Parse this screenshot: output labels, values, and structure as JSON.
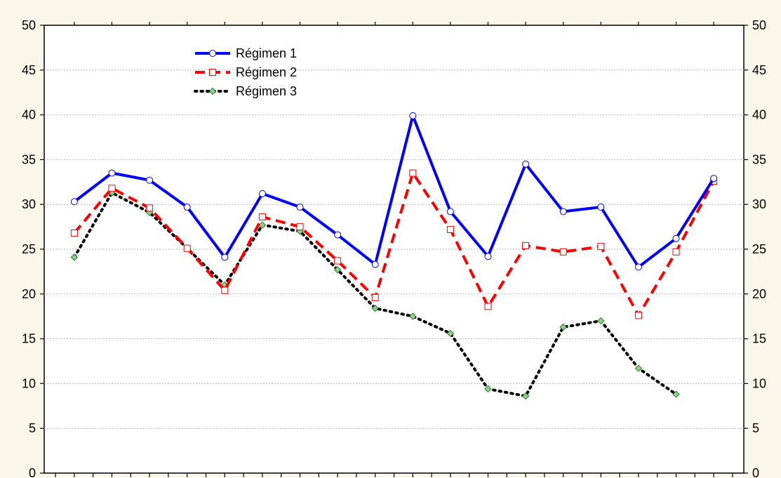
{
  "chart_data": {
    "type": "line",
    "title": "",
    "xlabel": "",
    "ylabel": "",
    "ylim": [
      0,
      50
    ],
    "yticks": [
      0,
      5,
      10,
      15,
      20,
      25,
      30,
      35,
      40,
      45,
      50
    ],
    "x": [
      1,
      2,
      3,
      4,
      5,
      6,
      7,
      8,
      9,
      10,
      11,
      12,
      13,
      14,
      15,
      16,
      17,
      18
    ],
    "xlim": [
      0.2,
      18.8
    ],
    "grid": true,
    "legend_position": "top-left",
    "background": "#fbf6ea",
    "series": [
      {
        "name": "Régimen 1",
        "color": "#0000ff",
        "line_style": "solid",
        "marker": "circle",
        "marker_fill": "#ffffff",
        "values": [
          30.3,
          33.5,
          32.7,
          29.7,
          24.1,
          31.2,
          29.7,
          26.6,
          23.3,
          39.9,
          29.2,
          24.2,
          34.5,
          29.2,
          29.7,
          23.0,
          26.2,
          32.9
        ]
      },
      {
        "name": "Régimen 2",
        "color": "#ff0000",
        "line_style": "dashed",
        "marker": "square",
        "marker_fill": "#ffffff",
        "values": [
          26.8,
          31.8,
          29.6,
          25.1,
          20.4,
          28.6,
          27.5,
          23.7,
          19.6,
          33.5,
          27.2,
          18.6,
          25.4,
          24.7,
          25.3,
          17.6,
          24.7,
          32.6
        ]
      },
      {
        "name": "Régimen 3",
        "color": "#000000",
        "line_style": "dotted",
        "marker": "diamond",
        "marker_fill": "#8fd08a",
        "values": [
          24.1,
          31.3,
          29.1,
          25.1,
          21.0,
          27.7,
          27.0,
          22.7,
          18.4,
          17.5,
          15.6,
          9.4,
          8.6,
          16.3,
          17.0,
          11.7,
          8.8,
          null
        ]
      }
    ]
  }
}
